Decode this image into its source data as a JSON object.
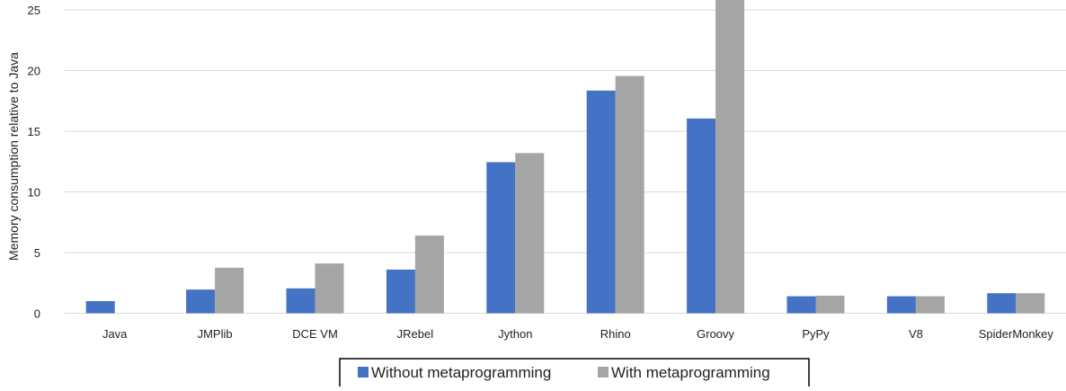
{
  "chart_data": {
    "type": "bar",
    "title": "",
    "xlabel": "",
    "ylabel": "Memory consumption relative to Java",
    "ylim": [
      0,
      25
    ],
    "yticks": [
      0,
      5,
      10,
      15,
      20,
      25
    ],
    "grid": true,
    "legend_position": "bottom",
    "categories": [
      "Java",
      "JMPlib",
      "DCE VM",
      "JRebel",
      "Jython",
      "Rhino",
      "Groovy",
      "PyPy",
      "V8",
      "SpiderMonkey"
    ],
    "series": [
      {
        "name": "Without metaprogramming",
        "color": "#4472C4",
        "values": [
          1.0,
          1.95,
          2.05,
          3.6,
          12.45,
          18.35,
          16.05,
          1.4,
          1.4,
          1.65
        ]
      },
      {
        "name": "With metaprogramming",
        "color": "#A5A5A5",
        "values": [
          null,
          3.75,
          4.1,
          6.4,
          13.2,
          19.55,
          26.5,
          1.45,
          1.4,
          1.65
        ]
      }
    ]
  }
}
